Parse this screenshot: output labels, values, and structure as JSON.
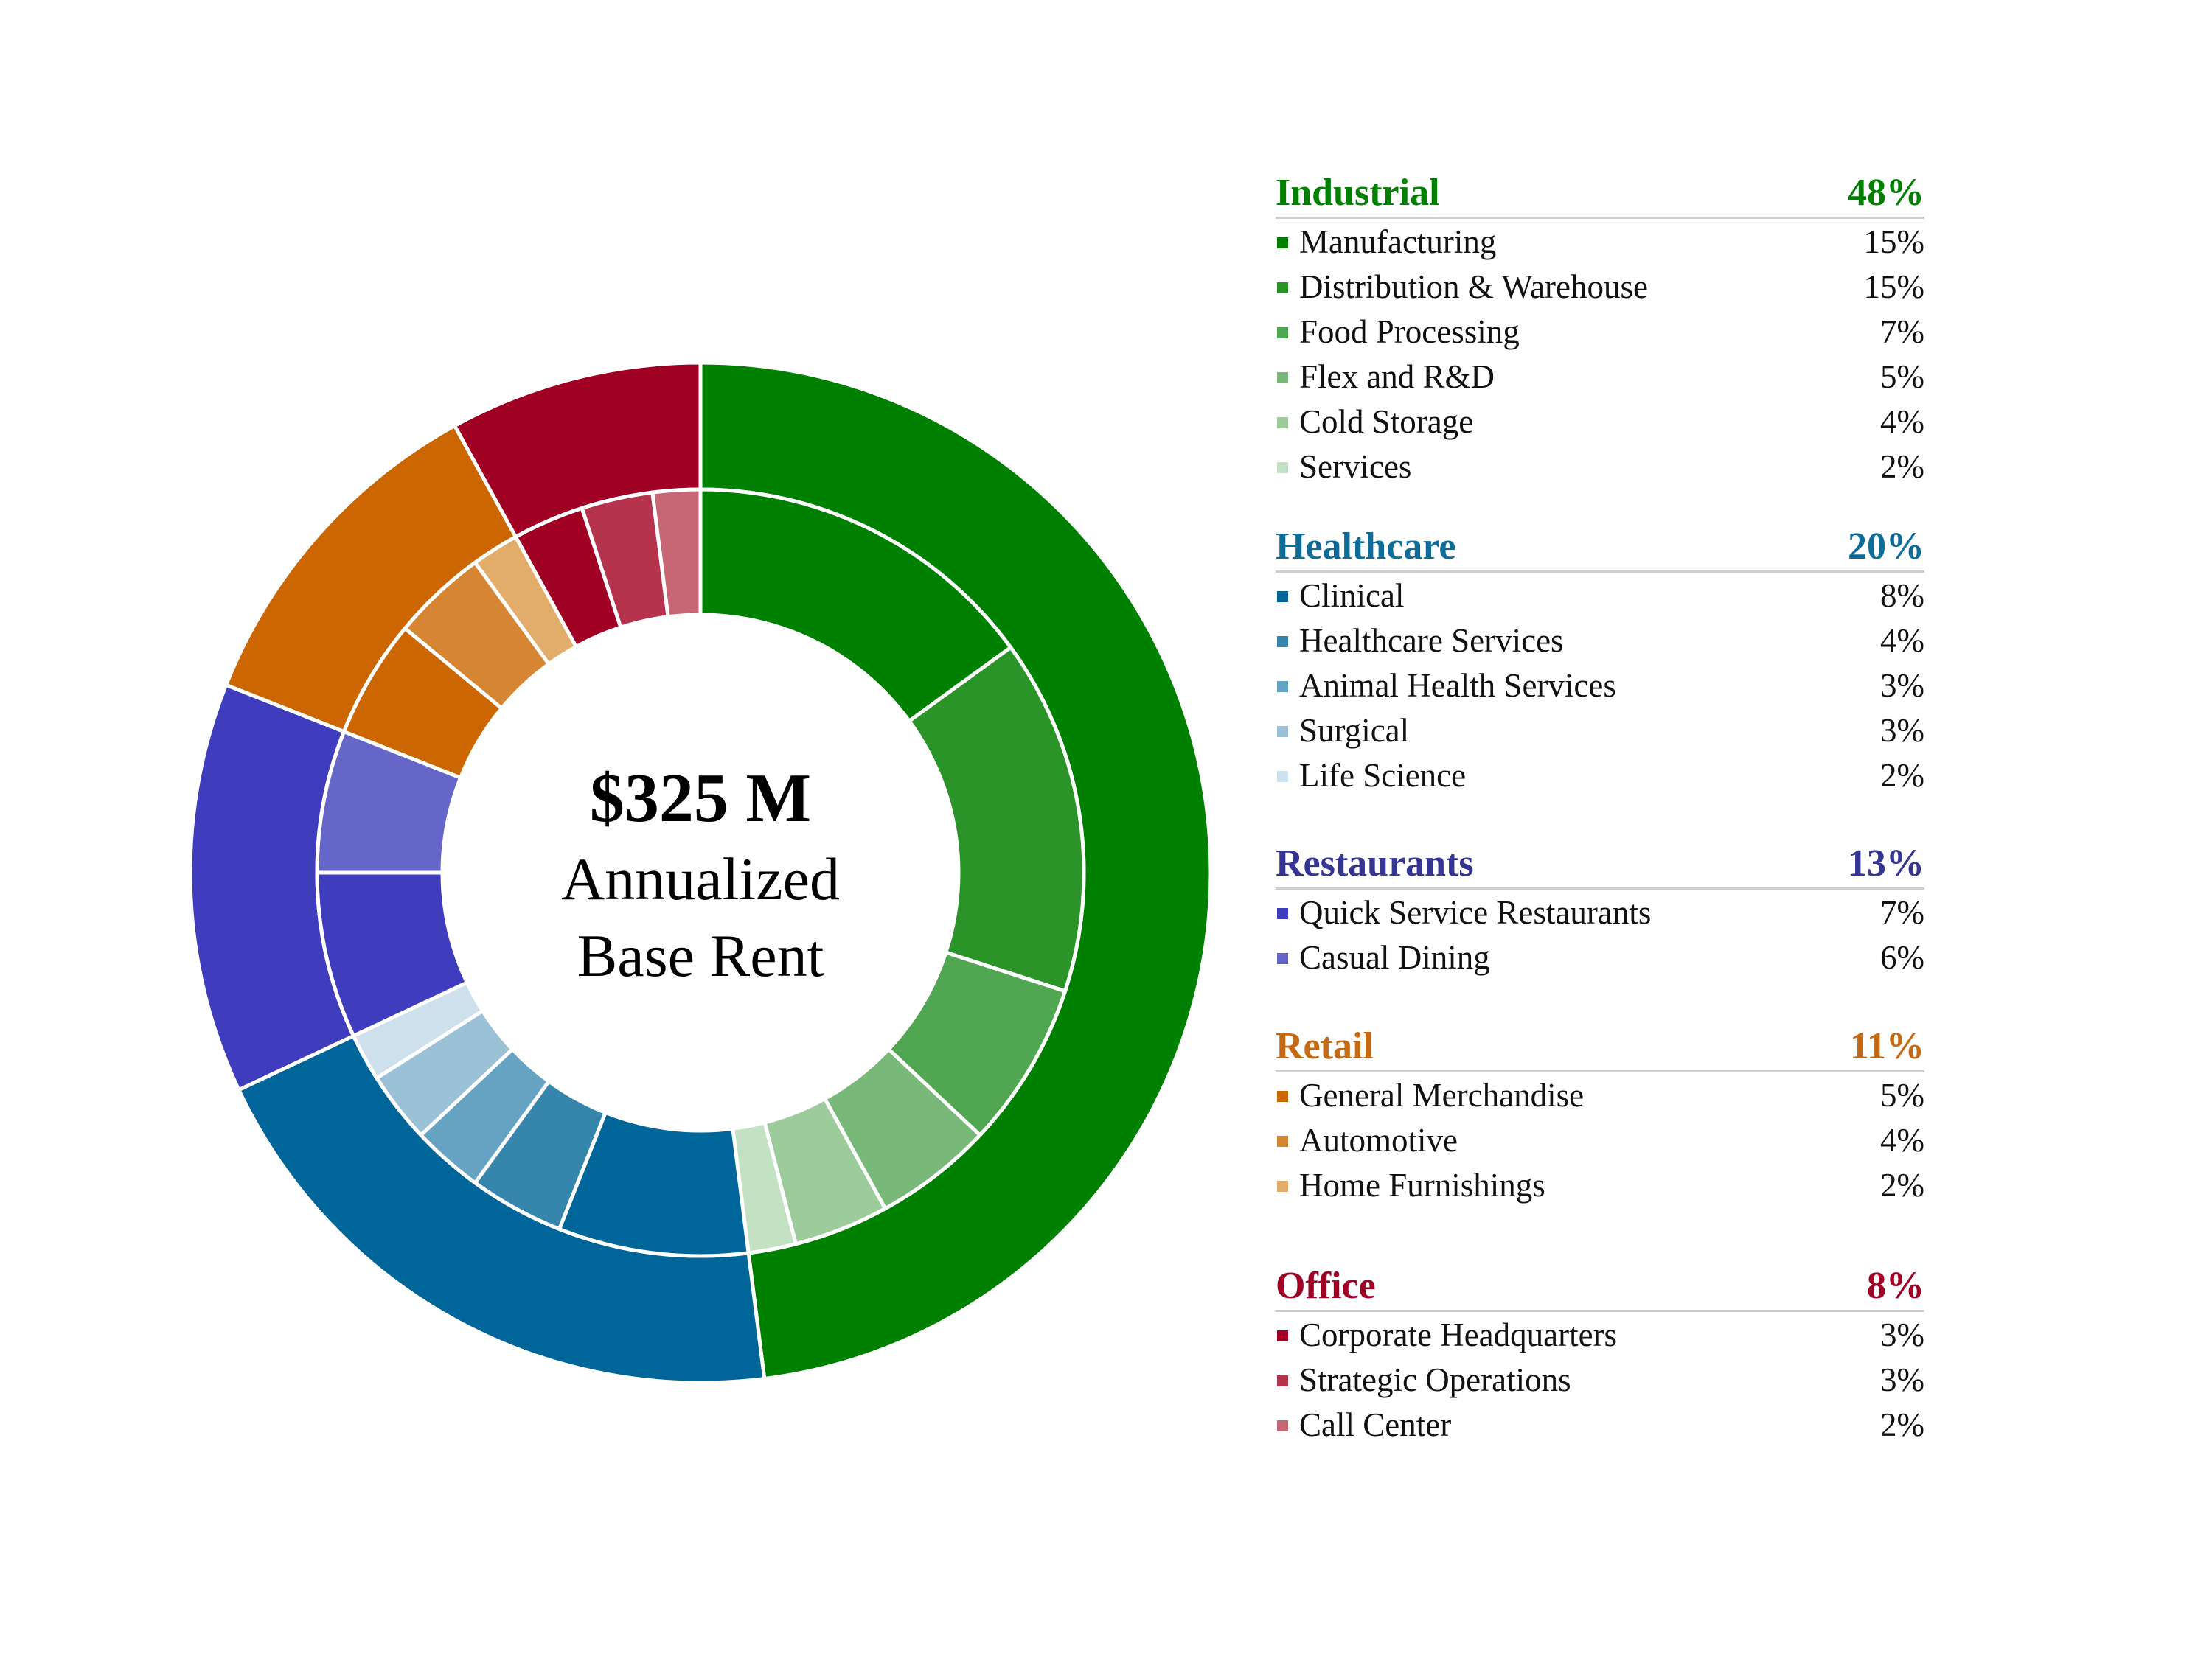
{
  "chart_data": {
    "type": "pie",
    "center": {
      "amount": "$325 M",
      "line1": "Annualized",
      "line2": "Base Rent"
    },
    "groups": [
      {
        "name": "Industrial",
        "pct_label": "48%",
        "value": 48,
        "color": "#008000",
        "items": [
          {
            "name": "Manufacturing",
            "pct_label": "15%",
            "value": 15,
            "color": "#008000"
          },
          {
            "name": "Distribution & Warehouse",
            "pct_label": "15%",
            "value": 15,
            "color": "#2a9428"
          },
          {
            "name": "Food Processing",
            "pct_label": "7%",
            "value": 7,
            "color": "#50a651"
          },
          {
            "name": "Flex and R&D",
            "pct_label": "5%",
            "value": 5,
            "color": "#78b878"
          },
          {
            "name": "Cold Storage",
            "pct_label": "4%",
            "value": 4,
            "color": "#9dcc9c"
          },
          {
            "name": "Services",
            "pct_label": "2%",
            "value": 2,
            "color": "#c3e2c3"
          }
        ]
      },
      {
        "name": "Healthcare",
        "pct_label": "20%",
        "value": 20,
        "color": "#006699",
        "items": [
          {
            "name": "Clinical",
            "pct_label": "8%",
            "value": 8,
            "color": "#006699"
          },
          {
            "name": "Healthcare Services",
            "pct_label": "4%",
            "value": 4,
            "color": "#3585ad"
          },
          {
            "name": "Animal Health Services",
            "pct_label": "3%",
            "value": 3,
            "color": "#66a3c2"
          },
          {
            "name": "Surgical",
            "pct_label": "3%",
            "value": 3,
            "color": "#9ac1d6"
          },
          {
            "name": "Life Science",
            "pct_label": "2%",
            "value": 2,
            "color": "#cde0eb"
          }
        ]
      },
      {
        "name": "Restaurants",
        "pct_label": "13%",
        "value": 13,
        "color": "#3f3dbd",
        "items": [
          {
            "name": "Quick Service Restaurants",
            "pct_label": "7%",
            "value": 7,
            "color": "#3f3dbd"
          },
          {
            "name": "Casual Dining",
            "pct_label": "6%",
            "value": 6,
            "color": "#6566c8"
          }
        ]
      },
      {
        "name": "Retail",
        "pct_label": "11%",
        "value": 11,
        "color": "#cc6600",
        "items": [
          {
            "name": "General Merchandise",
            "pct_label": "5%",
            "value": 5,
            "color": "#cc6600"
          },
          {
            "name": "Automotive",
            "pct_label": "4%",
            "value": 4,
            "color": "#d68533"
          },
          {
            "name": "Home Furnishings",
            "pct_label": "2%",
            "value": 2,
            "color": "#e2ad6b"
          }
        ]
      },
      {
        "name": "Office",
        "pct_label": "8%",
        "value": 8,
        "color": "#a10025",
        "items": [
          {
            "name": "Corporate Headquarters",
            "pct_label": "3%",
            "value": 3,
            "color": "#a10025"
          },
          {
            "name": "Strategic Operations",
            "pct_label": "3%",
            "value": 3,
            "color": "#b5334d"
          },
          {
            "name": "Call Center",
            "pct_label": "2%",
            "value": 2,
            "color": "#c96676"
          }
        ]
      }
    ]
  }
}
